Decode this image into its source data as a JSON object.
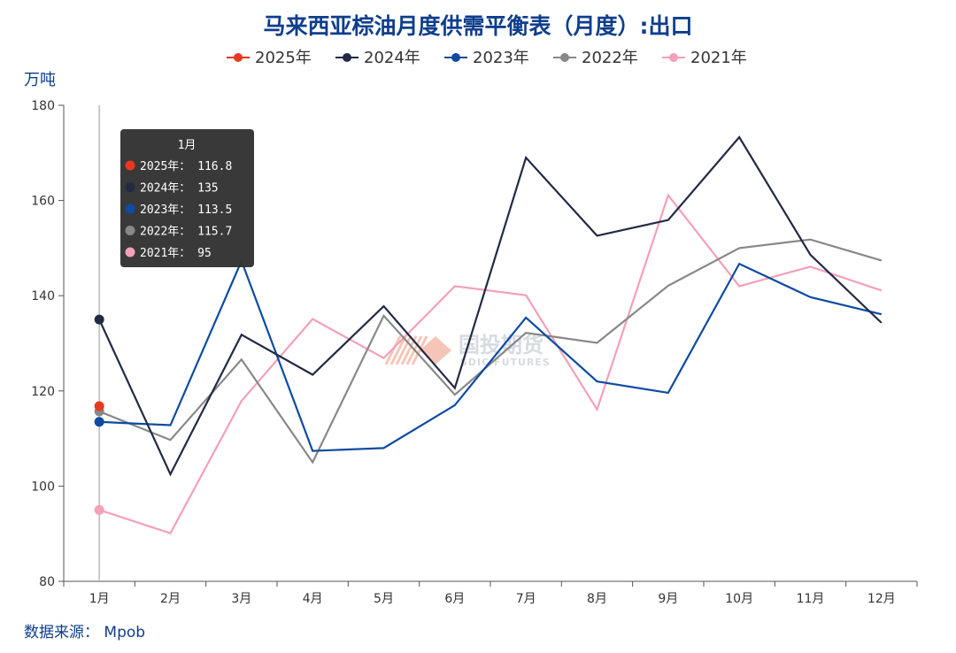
{
  "chart_data": {
    "type": "line",
    "title": "马来西亚棕油月度供需平衡表（月度）:出口",
    "ylabel": "万吨",
    "ylim": [
      80,
      180
    ],
    "yticks": [
      80,
      100,
      120,
      140,
      160,
      180
    ],
    "categories": [
      "1月",
      "2月",
      "3月",
      "4月",
      "5月",
      "6月",
      "7月",
      "8月",
      "9月",
      "10月",
      "11月",
      "12月"
    ],
    "grid": false,
    "legend_position": "top-center",
    "series": [
      {
        "name": "2025年",
        "color": "#e8381f",
        "values": [
          116.8,
          null,
          null,
          null,
          null,
          null,
          null,
          null,
          null,
          null,
          null,
          null
        ]
      },
      {
        "name": "2024年",
        "color": "#222a44",
        "values": [
          135,
          102.5,
          131.8,
          123.4,
          137.8,
          120.6,
          169,
          152.6,
          155.9,
          173.3,
          148.6,
          134.3
        ]
      },
      {
        "name": "2023年",
        "color": "#0e4ba1",
        "values": [
          113.5,
          112.8,
          147.3,
          107.4,
          108,
          117,
          135.4,
          122,
          119.6,
          146.7,
          139.7,
          136.1
        ]
      },
      {
        "name": "2022年",
        "color": "#888888",
        "values": [
          115.7,
          109.7,
          126.6,
          105,
          135.8,
          119.2,
          132.2,
          130.1,
          142.1,
          150,
          151.8,
          147.4
        ]
      },
      {
        "name": "2021年",
        "color": "#f4a0b8",
        "values": [
          95,
          90.1,
          117.9,
          135.1,
          126.9,
          142,
          140.1,
          116.1,
          161.1,
          142,
          146.1,
          141.1
        ]
      }
    ]
  },
  "tooltip": {
    "header": "1月",
    "rows": [
      {
        "label": "2025年： 116.8",
        "color": "#e8381f"
      },
      {
        "label": "2024年： 135",
        "color": "#222a44"
      },
      {
        "label": "2023年： 113.5",
        "color": "#0e4ba1"
      },
      {
        "label": "2022年： 115.7",
        "color": "#888888"
      },
      {
        "label": "2021年： 95",
        "color": "#f4a0b8"
      }
    ]
  },
  "watermark": {
    "name": "国投期货",
    "sub": "SDIC FUTURES"
  },
  "source": "数据来源： Mpob",
  "colors": {
    "title": "#0e3e8c",
    "unit": "#0e3e8c",
    "source": "#0e3e8c",
    "axis": "#555555",
    "cursor": "#bbbbbb",
    "tooltip_bg": "#333333"
  }
}
